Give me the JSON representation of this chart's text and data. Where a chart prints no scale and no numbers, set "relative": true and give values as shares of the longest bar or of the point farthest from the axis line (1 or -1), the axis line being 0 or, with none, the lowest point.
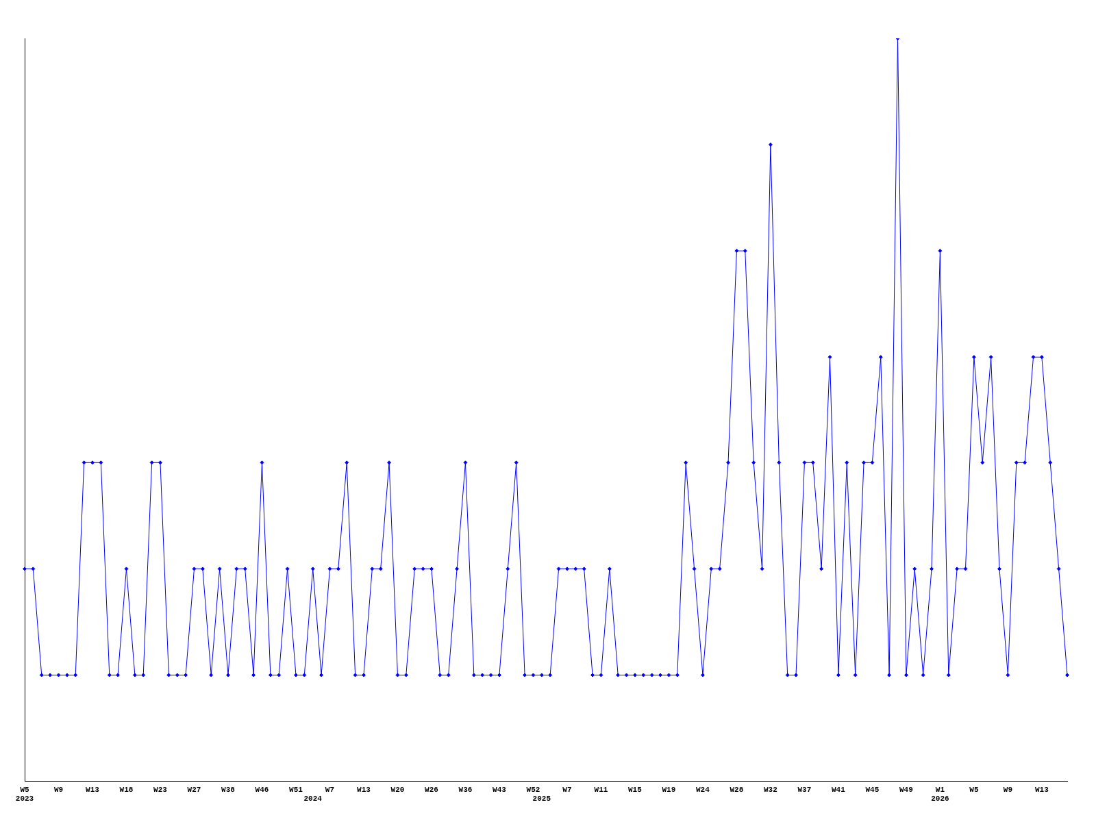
{
  "chart_data": {
    "type": "line",
    "relative": true,
    "marker": "diamond",
    "line_style": "solid",
    "grid": false,
    "legend": false,
    "categories": [
      "W5\n2023",
      null,
      null,
      null,
      "W9",
      null,
      null,
      null,
      "W13",
      null,
      null,
      null,
      "W18",
      null,
      null,
      null,
      "W23",
      null,
      null,
      null,
      "W27",
      null,
      null,
      null,
      "W38",
      null,
      null,
      null,
      "W46",
      null,
      null,
      null,
      "W51",
      null,
      "\n2024",
      null,
      "W7",
      null,
      null,
      null,
      "W13",
      null,
      null,
      null,
      "W20",
      null,
      null,
      null,
      "W26",
      null,
      null,
      null,
      "W36",
      null,
      null,
      null,
      "W43",
      null,
      null,
      null,
      "W52",
      "\n2025",
      null,
      null,
      "W7",
      null,
      null,
      null,
      "W11",
      null,
      null,
      null,
      "W15",
      null,
      null,
      null,
      "W19",
      null,
      null,
      null,
      "W24",
      null,
      null,
      null,
      "W28",
      null,
      null,
      null,
      "W32",
      null,
      null,
      null,
      "W37",
      null,
      null,
      null,
      "W41",
      null,
      null,
      null,
      "W45",
      null,
      null,
      null,
      "W49",
      null,
      null,
      null,
      "W1\n2026",
      null,
      null,
      null,
      "W5",
      null,
      null,
      null,
      "W9",
      null,
      null,
      null,
      "W13",
      null,
      null,
      null
    ],
    "series": [
      {
        "color": "#0000ff",
        "values": [
          0.286,
          0.286,
          0.143,
          0.143,
          0.143,
          0.143,
          0.143,
          0.429,
          0.429,
          0.429,
          0.143,
          0.143,
          0.286,
          0.143,
          0.143,
          0.429,
          0.429,
          0.143,
          0.143,
          0.143,
          0.286,
          0.286,
          0.143,
          0.286,
          0.143,
          0.286,
          0.286,
          0.143,
          0.429,
          0.143,
          0.143,
          0.286,
          0.143,
          0.143,
          0.286,
          0.143,
          0.286,
          0.286,
          0.429,
          0.143,
          0.143,
          0.286,
          0.286,
          0.429,
          0.143,
          0.143,
          0.286,
          0.286,
          0.286,
          0.143,
          0.143,
          0.286,
          0.429,
          0.143,
          0.143,
          0.143,
          0.143,
          0.286,
          0.429,
          0.143,
          0.143,
          0.143,
          0.143,
          0.286,
          0.286,
          0.286,
          0.286,
          0.143,
          0.143,
          0.286,
          0.143,
          0.143,
          0.143,
          0.143,
          0.143,
          0.143,
          0.143,
          0.143,
          0.429,
          0.286,
          0.143,
          0.286,
          0.286,
          0.429,
          0.714,
          0.714,
          0.429,
          0.286,
          0.857,
          0.429,
          0.143,
          0.143,
          0.429,
          0.429,
          0.286,
          0.571,
          0.143,
          0.429,
          0.143,
          0.429,
          0.429,
          0.571,
          0.143,
          1,
          0.143,
          0.286,
          0.143,
          0.286,
          0.714,
          0.143,
          0.286,
          0.286,
          0.571,
          0.429,
          0.571,
          0.286,
          0.143,
          0.429,
          0.429,
          0.571,
          0.571,
          0.429,
          0.286,
          0.143
        ]
      }
    ]
  }
}
